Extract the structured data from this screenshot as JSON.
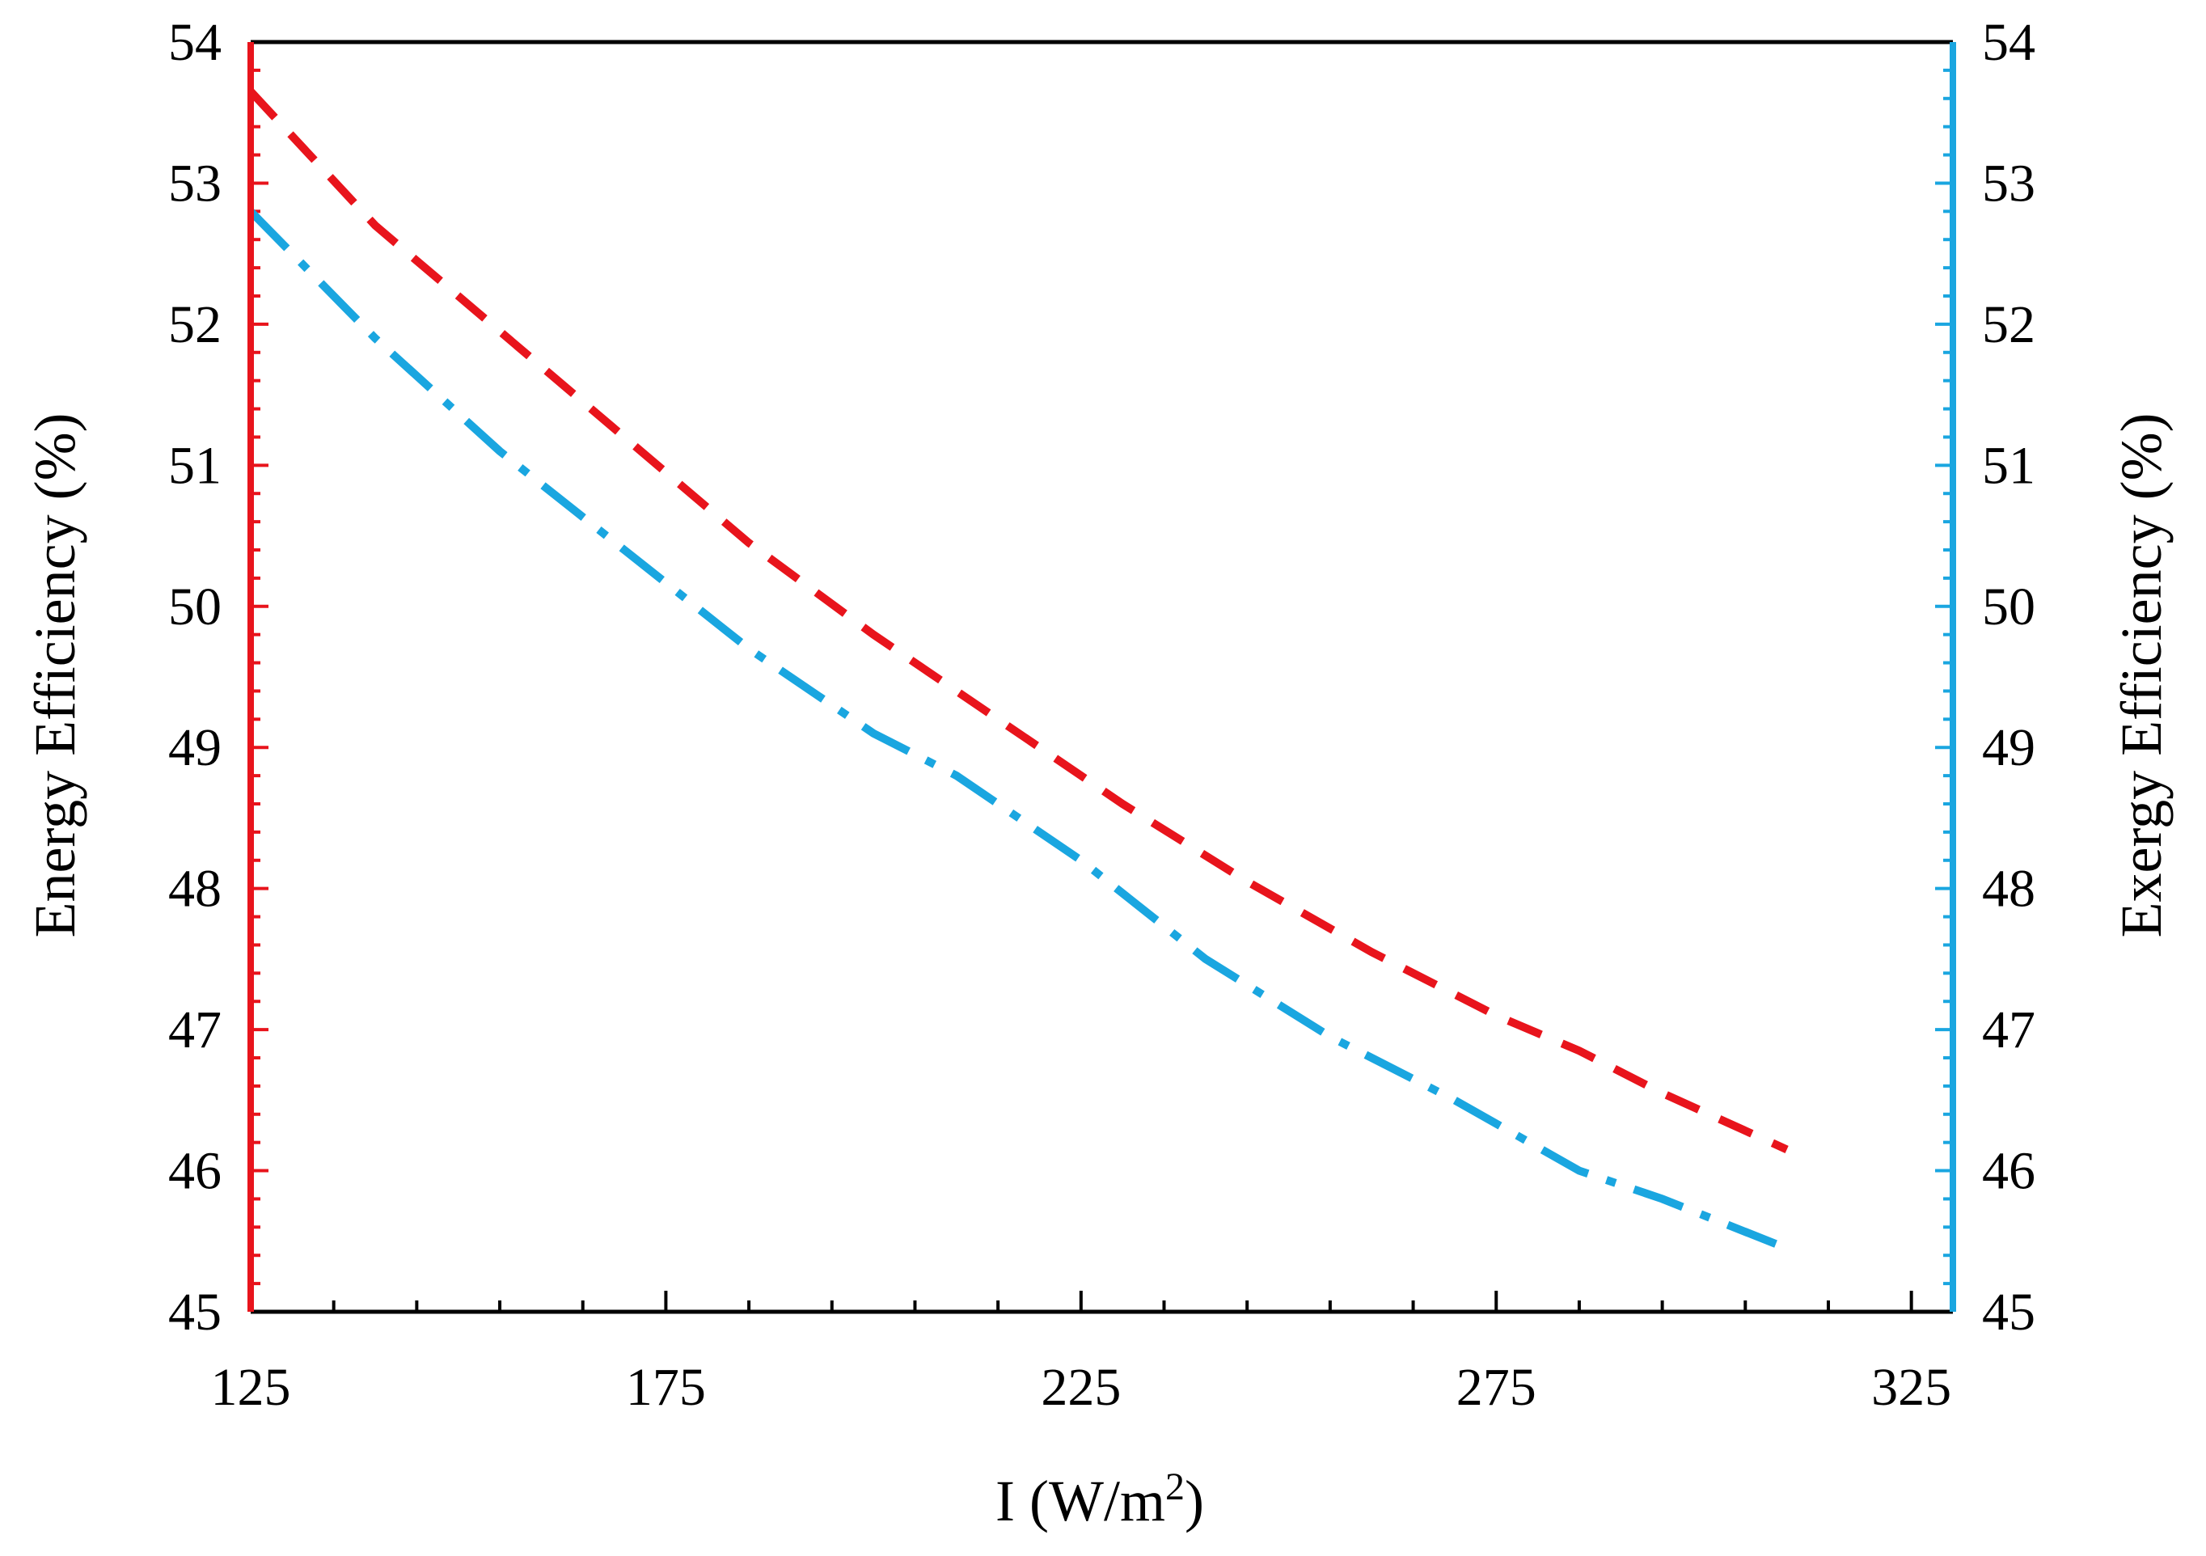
{
  "chart_data": {
    "type": "line",
    "title": "",
    "xlabel": "I (W/m",
    "xlabel_sup": "2",
    "xlabel_close": ")",
    "ylabel_left": "Energy Efficiency (%)",
    "ylabel_right": "Exergy Efficiency (%)",
    "xlim": [
      125,
      330
    ],
    "ylim": [
      45,
      54
    ],
    "x_ticks": [
      "125",
      "175",
      "225",
      "275",
      "325"
    ],
    "y_ticks": [
      "45",
      "46",
      "47",
      "48",
      "49",
      "50",
      "51",
      "52",
      "53",
      "54"
    ],
    "grid": false,
    "legend": "none",
    "colors": {
      "left_axis": "#e8141c",
      "right_axis": "#1aa6e0",
      "frame": "#000000"
    },
    "series": [
      {
        "axis": "left",
        "color": "#e8141c",
        "style": "dashed",
        "x": [
          125,
          140,
          155,
          170,
          185,
          200,
          215,
          230,
          245,
          260,
          275,
          285,
          295,
          310
        ],
        "y": [
          53.65,
          52.7,
          51.95,
          51.2,
          50.45,
          49.8,
          49.2,
          48.6,
          48.05,
          47.55,
          47.1,
          46.85,
          46.55,
          46.15
        ]
      },
      {
        "axis": "right",
        "color": "#1aa6e0",
        "style": "dashdot",
        "x": [
          125,
          140,
          155,
          170,
          185,
          200,
          210,
          225,
          240,
          255,
          270,
          285,
          295,
          310
        ],
        "y": [
          52.8,
          51.9,
          51.1,
          50.4,
          49.7,
          49.1,
          48.8,
          48.2,
          47.5,
          46.95,
          46.5,
          46.0,
          45.8,
          45.45
        ]
      }
    ]
  }
}
